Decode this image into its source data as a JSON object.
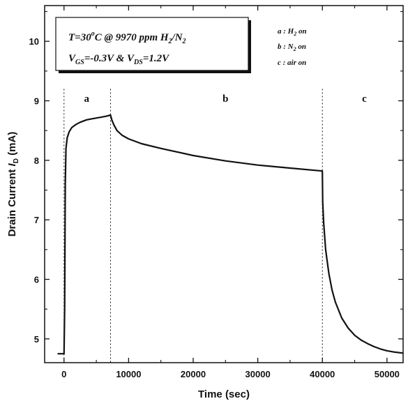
{
  "chart_data": {
    "type": "line",
    "xlabel": "Time (sec)",
    "ylabel_main": "Drain Current ",
    "ylabel_var": "I",
    "ylabel_sub": "D",
    "ylabel_unit": " (mA)",
    "xlim": [
      -3000,
      52500
    ],
    "ylim": [
      4.6,
      10.6
    ],
    "x_ticks": [
      0,
      10000,
      20000,
      30000,
      40000,
      50000
    ],
    "x_tick_labels": [
      "0",
      "10000",
      "20000",
      "30000",
      "40000",
      "50000"
    ],
    "y_ticks": [
      5,
      6,
      7,
      8,
      9,
      10
    ],
    "y_tick_labels": [
      "5",
      "6",
      "7",
      "8",
      "9",
      "10"
    ],
    "regions": [
      {
        "label": "a",
        "x": 3500
      },
      {
        "label": "b",
        "x": 25000
      },
      {
        "label": "c",
        "x": 46500
      }
    ],
    "divider_x": [
      0,
      7200,
      40000
    ],
    "condition_box": {
      "line1": {
        "main": "T=30",
        "sup": "o",
        "mid": "C @ 9970 ppm H",
        "sub": "2",
        "tail": "/N",
        "sub2": "2"
      },
      "line2": {
        "a": "V",
        "a_sub": "GS",
        "b": "=-0.3V & V",
        "b_sub": "DS",
        "c": "=1.2V"
      }
    },
    "legend": [
      {
        "prefix": "a : H",
        "sub": "2",
        "suffix": " on"
      },
      {
        "prefix": "b : N",
        "sub": "2",
        "suffix": " on"
      },
      {
        "prefix": "c : air on",
        "sub": "",
        "suffix": ""
      }
    ],
    "grid": false,
    "series": [
      {
        "x": [
          -1000,
          0,
          100,
          200,
          300,
          500,
          800,
          1200,
          1800,
          2500,
          3500,
          4500,
          5500,
          6500,
          7200,
          7400,
          7700,
          8200,
          9000,
          10000,
          12000,
          15000,
          20000,
          25000,
          30000,
          35000,
          40000,
          40050,
          40200,
          40500,
          41000,
          41500,
          42000,
          43000,
          44000,
          45000,
          46000,
          47000,
          48000,
          49000,
          50000,
          51000,
          52500
        ],
        "y": [
          4.75,
          4.75,
          5.5,
          7.6,
          8.2,
          8.38,
          8.48,
          8.55,
          8.6,
          8.64,
          8.68,
          8.7,
          8.72,
          8.74,
          8.76,
          8.68,
          8.6,
          8.5,
          8.42,
          8.36,
          8.28,
          8.2,
          8.08,
          7.99,
          7.92,
          7.87,
          7.82,
          7.3,
          6.95,
          6.5,
          6.1,
          5.82,
          5.62,
          5.35,
          5.18,
          5.06,
          4.98,
          4.92,
          4.87,
          4.83,
          4.8,
          4.78,
          4.76
        ]
      }
    ]
  }
}
